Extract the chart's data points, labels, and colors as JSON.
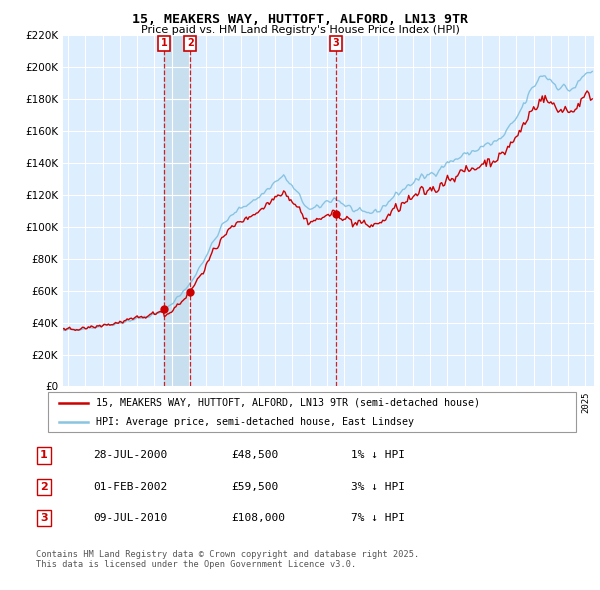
{
  "title": "15, MEAKERS WAY, HUTTOFT, ALFORD, LN13 9TR",
  "subtitle": "Price paid vs. HM Land Registry's House Price Index (HPI)",
  "property_label": "15, MEAKERS WAY, HUTTOFT, ALFORD, LN13 9TR (semi-detached house)",
  "hpi_label": "HPI: Average price, semi-detached house, East Lindsey",
  "sales": [
    {
      "date": 2000.57,
      "price": 48500,
      "label": "1",
      "date_str": "28-JUL-2000",
      "pct": "1% ↓ HPI"
    },
    {
      "date": 2002.08,
      "price": 59500,
      "label": "2",
      "date_str": "01-FEB-2002",
      "pct": "3% ↓ HPI"
    },
    {
      "date": 2010.52,
      "price": 108000,
      "label": "3",
      "date_str": "09-JUL-2010",
      "pct": "7% ↓ HPI"
    }
  ],
  "footnote": "Contains HM Land Registry data © Crown copyright and database right 2025.\nThis data is licensed under the Open Government Licence v3.0.",
  "ylim": [
    0,
    220000
  ],
  "yticks": [
    0,
    20000,
    40000,
    60000,
    80000,
    100000,
    120000,
    140000,
    160000,
    180000,
    200000,
    220000
  ],
  "xlim_start": 1994.7,
  "xlim_end": 2025.5,
  "hpi_color": "#89c4e1",
  "price_color": "#cc0000",
  "chart_bg": "#ddeeff",
  "background_color": "#ffffff",
  "grid_color": "#ffffff",
  "band_color": "#c8dff0"
}
